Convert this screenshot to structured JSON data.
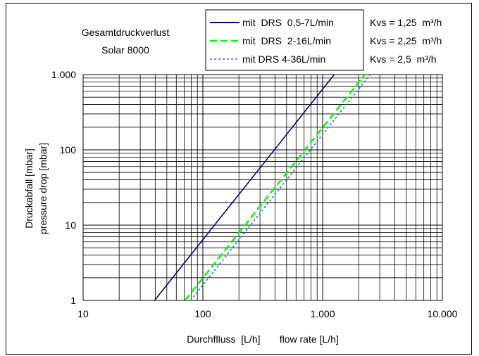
{
  "chart_data": {
    "type": "line",
    "title_lines": [
      "Gesamtdruckverlust",
      "Solar 8000"
    ],
    "xlabel": "Durchflluss  [L/h]       flow rate [L/h]",
    "ylabel_lines": [
      "Druckabfall  [mbar]",
      "pressure drop [mbar]"
    ],
    "x_scale": "log",
    "y_scale": "log",
    "xlim": [
      10,
      10000
    ],
    "ylim": [
      1,
      1000
    ],
    "x_ticks": [
      10,
      100,
      1000,
      10000
    ],
    "x_tick_labels": [
      "10",
      "100",
      "1.000",
      "10.000"
    ],
    "y_ticks": [
      1,
      10,
      100,
      1000
    ],
    "y_tick_labels": [
      "1",
      "10",
      "100",
      "1.000"
    ],
    "grid": true,
    "legend_position": "top-center",
    "series": [
      {
        "name": "mit  DRS  0,5-7L/min",
        "kvs": "Kvs = 1,25  m³/h",
        "color": "#000080",
        "dash": "solid",
        "x": [
          39.5,
          1250
        ],
        "y": [
          1,
          1000
        ]
      },
      {
        "name": "mit  DRS  2-16L/min",
        "kvs": "Kvs = 2,25  m³/h",
        "color": "#00ff00",
        "dash": "long-dash",
        "x": [
          71,
          2250
        ],
        "y": [
          1,
          1000
        ]
      },
      {
        "name": "mit DRS 4-36L/min",
        "kvs": "Kvs = 2,5  m³/h",
        "color": "#3366ff",
        "dash": "dot",
        "x": [
          79,
          2500
        ],
        "y": [
          1,
          1000
        ]
      }
    ]
  }
}
